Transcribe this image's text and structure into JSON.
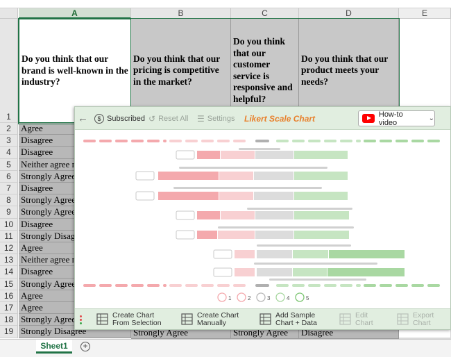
{
  "spreadsheet": {
    "columns": [
      "A",
      "B",
      "C",
      "D",
      "E"
    ],
    "headers": {
      "A": "Do you think that our brand is well-known in the industry?",
      "B": "Do you think that our pricing is competitive in the market?",
      "C": "Do you think that our customer service is responsive and helpful?",
      "D": "Do you think that our product meets your needs?"
    },
    "row_numbers": [
      "1",
      "2",
      "3",
      "4",
      "5",
      "6",
      "7",
      "8",
      "9",
      "10",
      "11",
      "12",
      "13",
      "14",
      "15",
      "16",
      "17",
      "18",
      "19"
    ],
    "column_a": [
      "Agree",
      "Disagree",
      "Disagree",
      "Neither agree n",
      "Strongly Agree",
      "Disagree",
      "Strongly Agree",
      "Strongly Agree",
      "Disagree",
      "Strongly Disagr",
      "Agree",
      "Neither agree n",
      "Disagree",
      "Strongly Agree",
      "Agree",
      "Agree",
      "Strongly Agree",
      "Strongly Disagree"
    ],
    "row19": {
      "B": "Strongly Agree",
      "C": "Strongly Agree",
      "D": "Disagree"
    },
    "sheet_tab": "Sheet1",
    "add_sheet": "+"
  },
  "panel": {
    "topbar": {
      "back": "←",
      "subscribed": "Subscribed",
      "reset": "Reset All",
      "settings": "Settings",
      "chart_title": "Likert Scale Chart",
      "howto": "How-to video"
    },
    "bottombar": [
      {
        "line1": "Create Chart",
        "line2": "From Selection",
        "icon": "table-grid-icon",
        "enabled": true
      },
      {
        "line1": "Create Chart",
        "line2": "Manually",
        "icon": "table-edit-icon",
        "enabled": true
      },
      {
        "line1": "Add Sample",
        "line2": "Chart + Data",
        "icon": "sample-chart-icon",
        "enabled": true
      },
      {
        "line1": "Edit",
        "line2": "Chart",
        "icon": "edit-chart-icon",
        "enabled": false
      },
      {
        "line1": "Export",
        "line2": "Chart",
        "icon": "export-chart-icon",
        "enabled": false
      }
    ],
    "legend_labels": [
      "1",
      "2",
      "3",
      "4",
      "5"
    ],
    "colors": {
      "strong_disagree": "#f4a9ad",
      "disagree": "#f8d0d2",
      "neutral": "#dcdcdc",
      "agree": "#c6e5c2",
      "strong_agree": "#a9d8a2",
      "title_orange": "#e8802c",
      "panel_bg": "#e1eee0",
      "excel_green": "#217346"
    }
  }
}
